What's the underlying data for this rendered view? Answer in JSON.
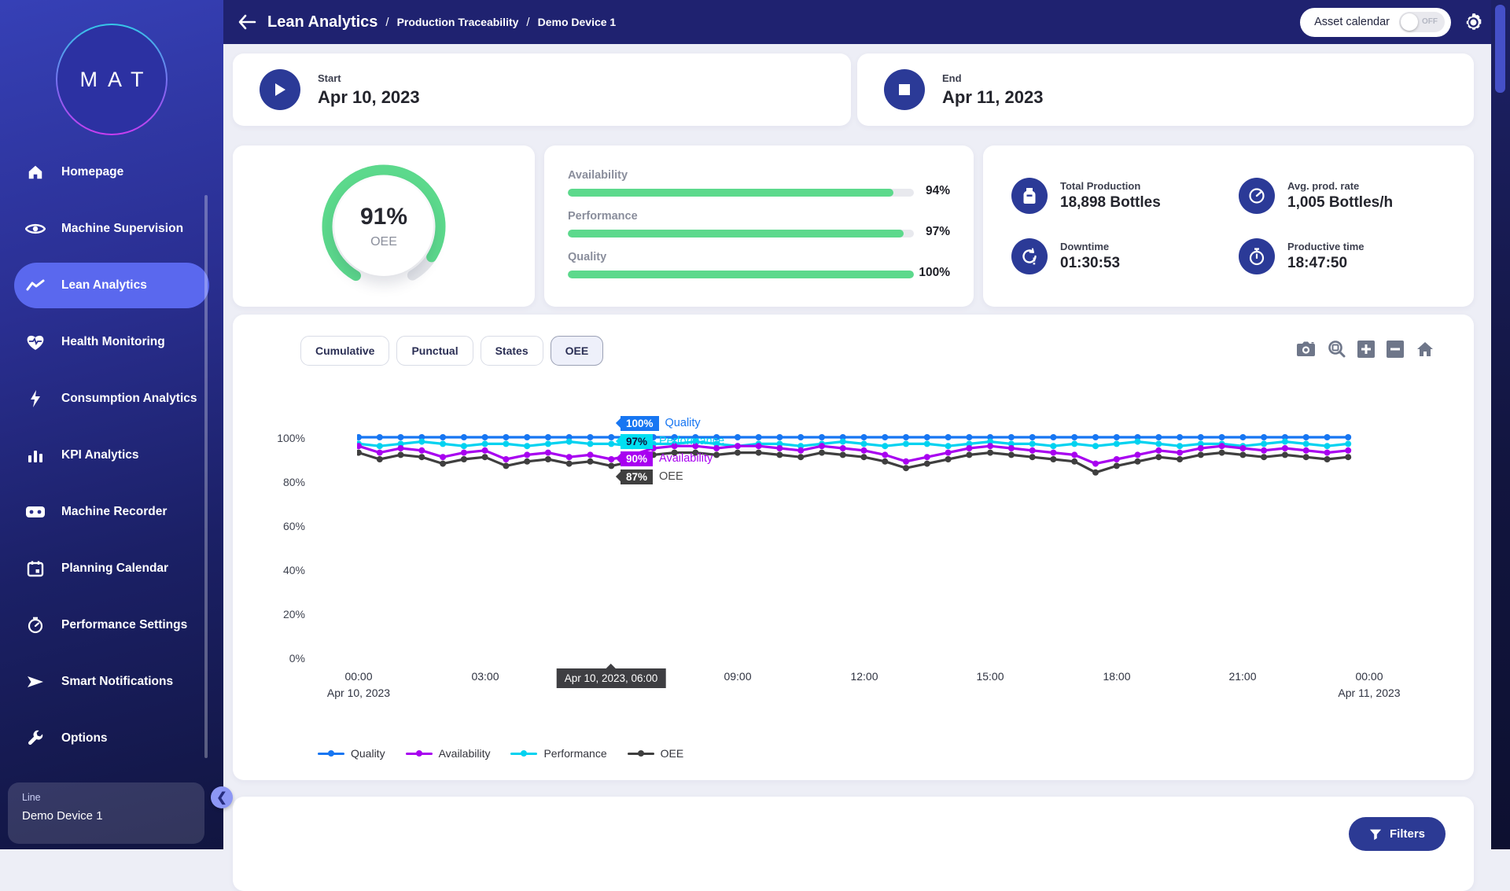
{
  "topbar": {
    "title": "Lean Analytics",
    "sep": "/",
    "breadcrumb1": "Production Traceability",
    "breadcrumb2": "Demo Device 1",
    "asset_calendar_label": "Asset calendar",
    "toggle_state": "OFF"
  },
  "sidebar": {
    "logo": "MAT",
    "items": [
      {
        "label": "Homepage",
        "icon": "home-icon"
      },
      {
        "label": "Machine Supervision",
        "icon": "eye-icon"
      },
      {
        "label": "Lean Analytics",
        "icon": "trend-line-icon"
      },
      {
        "label": "Health Monitoring",
        "icon": "heart-pulse-icon"
      },
      {
        "label": "Consumption Analytics",
        "icon": "bolt-icon"
      },
      {
        "label": "KPI Analytics",
        "icon": "bar-chart-icon"
      },
      {
        "label": "Machine Recorder",
        "icon": "recorder-icon"
      },
      {
        "label": "Planning Calendar",
        "icon": "calendar-icon"
      },
      {
        "label": "Performance Settings",
        "icon": "speedometer-icon"
      },
      {
        "label": "Smart Notifications",
        "icon": "send-icon"
      },
      {
        "label": "Options",
        "icon": "wrench-icon"
      }
    ],
    "active_item": "Lean Analytics",
    "line_label": "Line",
    "line_value": "Demo Device 1"
  },
  "period": {
    "start_label": "Start",
    "start_value": "Apr 10, 2023",
    "end_label": "End",
    "end_value": "Apr 11, 2023"
  },
  "oee_gauge": {
    "value": "91%",
    "label": "OEE",
    "percent": 91,
    "color": "#5cd98c",
    "track_color": "#e4e6ea"
  },
  "kpi_bars": [
    {
      "label": "Availability",
      "display": "94%",
      "percent": 94
    },
    {
      "label": "Performance",
      "display": "97%",
      "percent": 97
    },
    {
      "label": "Quality",
      "display": "100%",
      "percent": 100
    }
  ],
  "stats": [
    {
      "label": "Total Production",
      "value": "18,898 Bottles",
      "icon": "bottle-icon"
    },
    {
      "label": "Avg. prod. rate",
      "value": "1,005 Bottles/h",
      "icon": "rate-gauge-icon"
    },
    {
      "label": "Downtime",
      "value": "01:30:53",
      "icon": "downtime-icon"
    },
    {
      "label": "Productive time",
      "value": "18:47:50",
      "icon": "stopwatch-icon"
    }
  ],
  "chart_tabs": {
    "tabs": [
      "Cumulative",
      "Punctual",
      "States",
      "OEE"
    ],
    "active": "OEE",
    "toolbar_icons": [
      "camera-icon",
      "zoom-box-icon",
      "zoom-in-icon",
      "zoom-out-icon",
      "home-reset-icon"
    ]
  },
  "filters_label": "Filters",
  "chart_data": {
    "type": "line",
    "x_step_hours": 0.5,
    "x_range_hours": [
      0,
      24
    ],
    "ylim": [
      0,
      100
    ],
    "grid": false,
    "yticks": [
      "100%",
      "80%",
      "60%",
      "40%",
      "20%",
      "0%"
    ],
    "xticks": [
      {
        "hour": 0,
        "label": "00:00",
        "sub": "Apr 10, 2023"
      },
      {
        "hour": 3,
        "label": "03:00"
      },
      {
        "hour": 6,
        "label": "06:00",
        "hidden": true
      },
      {
        "hour": 9,
        "label": "09:00"
      },
      {
        "hour": 12,
        "label": "12:00"
      },
      {
        "hour": 15,
        "label": "15:00"
      },
      {
        "hour": 18,
        "label": "18:00"
      },
      {
        "hour": 21,
        "label": "21:00"
      },
      {
        "hour": 24,
        "label": "00:00",
        "sub": "Apr 11, 2023"
      }
    ],
    "series": [
      {
        "name": "Quality",
        "color": "#1776f2",
        "values": [
          100,
          100,
          100,
          100,
          100,
          100,
          100,
          100,
          100,
          100,
          100,
          100,
          100,
          100,
          100,
          100,
          100,
          100,
          100,
          100,
          100,
          100,
          100,
          100,
          100,
          100,
          100,
          100,
          100,
          100,
          100,
          100,
          100,
          100,
          100,
          100,
          100,
          100,
          100,
          100,
          100,
          100,
          100,
          100,
          100,
          100,
          100,
          100
        ]
      },
      {
        "name": "Performance",
        "color": "#00d2f0",
        "values": [
          97,
          96,
          97,
          98,
          97,
          96,
          97,
          97,
          96,
          97,
          98,
          97,
          97,
          96,
          97,
          97,
          98,
          97,
          96,
          97,
          97,
          96,
          97,
          98,
          97,
          96,
          97,
          97,
          96,
          97,
          98,
          97,
          97,
          96,
          97,
          96,
          97,
          98,
          97,
          96,
          97,
          97,
          96,
          97,
          98,
          97,
          96,
          97
        ]
      },
      {
        "name": "Availability",
        "color": "#a800f0",
        "values": [
          96,
          93,
          95,
          94,
          91,
          93,
          94,
          90,
          92,
          93,
          91,
          92,
          90,
          92,
          95,
          96,
          96,
          95,
          96,
          96,
          95,
          94,
          96,
          95,
          94,
          92,
          89,
          91,
          93,
          95,
          96,
          95,
          94,
          93,
          92,
          88,
          90,
          92,
          94,
          93,
          95,
          96,
          95,
          94,
          95,
          94,
          93,
          94
        ]
      },
      {
        "name": "OEE",
        "color": "#3f3f3f",
        "values": [
          93,
          90,
          92,
          91,
          88,
          90,
          91,
          87,
          89,
          90,
          88,
          89,
          87,
          89,
          92,
          93,
          93,
          92,
          93,
          93,
          92,
          91,
          93,
          92,
          91,
          89,
          86,
          88,
          90,
          92,
          93,
          92,
          91,
          90,
          89,
          84,
          87,
          89,
          91,
          90,
          92,
          93,
          92,
          91,
          92,
          91,
          90,
          91
        ]
      }
    ],
    "legend": [
      {
        "name": "Quality",
        "color": "#1776f2"
      },
      {
        "name": "Availability",
        "color": "#a800f0"
      },
      {
        "name": "Performance",
        "color": "#00d2f0"
      },
      {
        "name": "OEE",
        "color": "#3f3f3f"
      }
    ],
    "legend_position": "bottom-left",
    "axis_tooltip": {
      "hour": 6,
      "label": "Apr 10, 2023, 06:00"
    },
    "hover_tooltip": {
      "hour": 6,
      "rows": [
        {
          "value": "100%",
          "label": "Quality",
          "bg": "#1776f2",
          "fg": "#ffffff",
          "label_color": "#1776f2"
        },
        {
          "value": "97%",
          "label": "Performance",
          "bg": "#00dff2",
          "fg": "#10123a",
          "label_color": "#00d2f0"
        },
        {
          "value": "90%",
          "label": "Availability",
          "bg": "#a800f0",
          "fg": "#ffffff",
          "label_color": "#a800f0"
        },
        {
          "value": "87%",
          "label": "OEE",
          "bg": "#3f3f3f",
          "fg": "#ffffff",
          "label_color": "#4a4a4a"
        }
      ]
    }
  }
}
